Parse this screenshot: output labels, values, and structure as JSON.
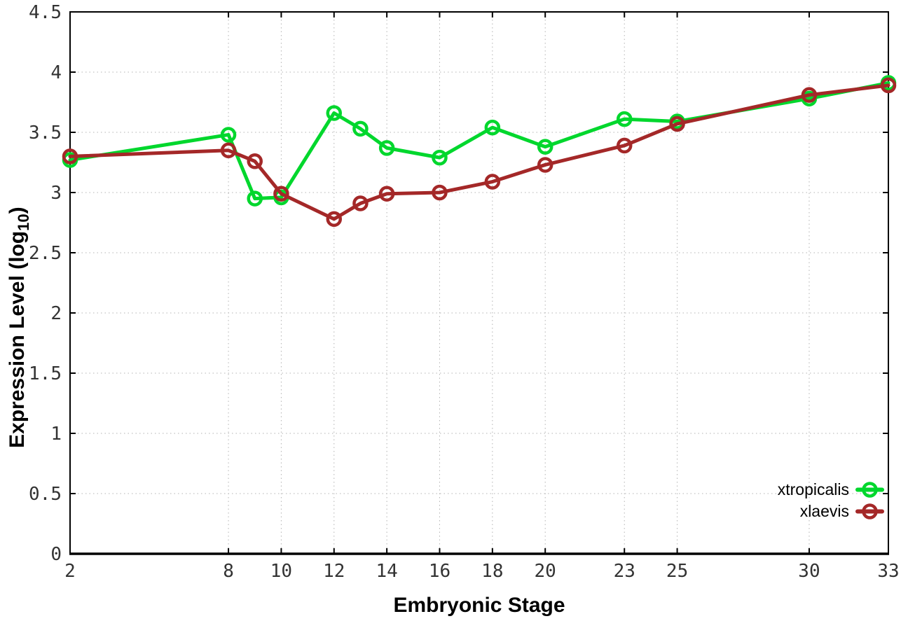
{
  "figure": {
    "xlabel": "Embryonic Stage",
    "ylabel": {
      "prefix": "Expression Level (log",
      "sub": "10",
      "suffix": ")"
    }
  },
  "chart_data": {
    "type": "line",
    "x": [
      2,
      8,
      9,
      10,
      12,
      13,
      14,
      16,
      18,
      20,
      23,
      25,
      30,
      33
    ],
    "series": [
      {
        "name": "xtropicalis",
        "color": "#00d72d",
        "values": [
          3.27,
          3.48,
          2.95,
          2.96,
          3.66,
          3.53,
          3.37,
          3.29,
          3.54,
          3.38,
          3.61,
          3.59,
          3.78,
          3.91
        ]
      },
      {
        "name": "xlaevis",
        "color": "#a42828",
        "values": [
          3.3,
          3.35,
          3.26,
          2.99,
          2.78,
          2.91,
          2.99,
          3.0,
          3.09,
          3.23,
          3.39,
          3.57,
          3.81,
          3.89
        ]
      }
    ],
    "xlabel": "Embryonic Stage",
    "ylabel": "Expression Level (log10)",
    "xlim": [
      2,
      33
    ],
    "ylim": [
      0,
      4.5
    ],
    "xticks": [
      2,
      8,
      10,
      12,
      14,
      16,
      18,
      20,
      23,
      25,
      30,
      33
    ],
    "xtick_labels": [
      "2",
      "8",
      "10",
      "12",
      "14",
      "16",
      "18",
      "20",
      "23",
      "25",
      "30",
      "33"
    ],
    "yticks": [
      0,
      0.5,
      1,
      1.5,
      2,
      2.5,
      3,
      3.5,
      4,
      4.5
    ],
    "ytick_labels": [
      "0",
      "0.5",
      "1",
      "1.5",
      "2",
      "2.5",
      "3",
      "3.5",
      "4",
      "4.5"
    ],
    "grid": true,
    "legend_position": "inside-bottom-right",
    "marker": "open-circle",
    "colors": {
      "border": "#000000",
      "grid": "#b3b3b3",
      "tick_label": "#333333"
    }
  }
}
